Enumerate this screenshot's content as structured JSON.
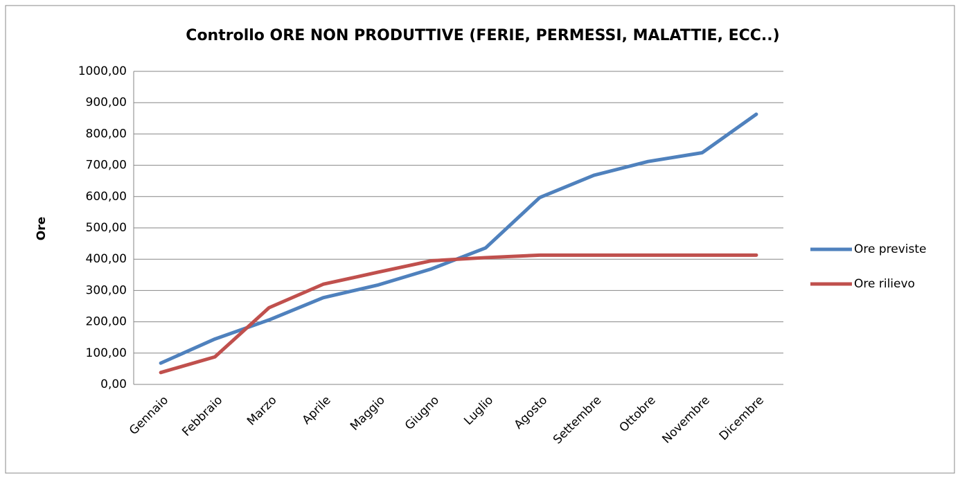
{
  "chart_data": {
    "type": "line",
    "title": "Controllo ORE NON PRODUTTIVE (FERIE, PERMESSI, MALATTIE, ECC..)",
    "y_label": "Ore",
    "categories": [
      "Gennaio",
      "Febbraio",
      "Marzo",
      "Aprile",
      "Maggio",
      "Giugno",
      "Luglio",
      "Agosto",
      "Settembre",
      "Ottobre",
      "Novembre",
      "Dicembre"
    ],
    "series": [
      {
        "name": "Ore previste",
        "color": "#4f81bd",
        "values": [
          68,
          145,
          206,
          277,
          317,
          369,
          436,
          597,
          668,
          712,
          740,
          863
        ]
      },
      {
        "name": "Ore rilievo",
        "color": "#c0504d",
        "values": [
          38,
          88,
          245,
          320,
          358,
          395,
          405,
          413,
          413,
          413,
          413,
          413
        ]
      }
    ],
    "ylim": [
      0,
      1000
    ],
    "yticks": [
      {
        "value": 0,
        "label": "0,00"
      },
      {
        "value": 100,
        "label": "100,00"
      },
      {
        "value": 200,
        "label": "200,00"
      },
      {
        "value": 300,
        "label": "300,00"
      },
      {
        "value": 400,
        "label": "400,00"
      },
      {
        "value": 500,
        "label": "500,00"
      },
      {
        "value": 600,
        "label": "600,00"
      },
      {
        "value": 700,
        "label": "700,00"
      },
      {
        "value": 800,
        "label": "800,00"
      },
      {
        "value": 900,
        "label": "900,00"
      },
      {
        "value": 1000,
        "label": "1000,00"
      }
    ],
    "grid": true,
    "legend": "right"
  }
}
